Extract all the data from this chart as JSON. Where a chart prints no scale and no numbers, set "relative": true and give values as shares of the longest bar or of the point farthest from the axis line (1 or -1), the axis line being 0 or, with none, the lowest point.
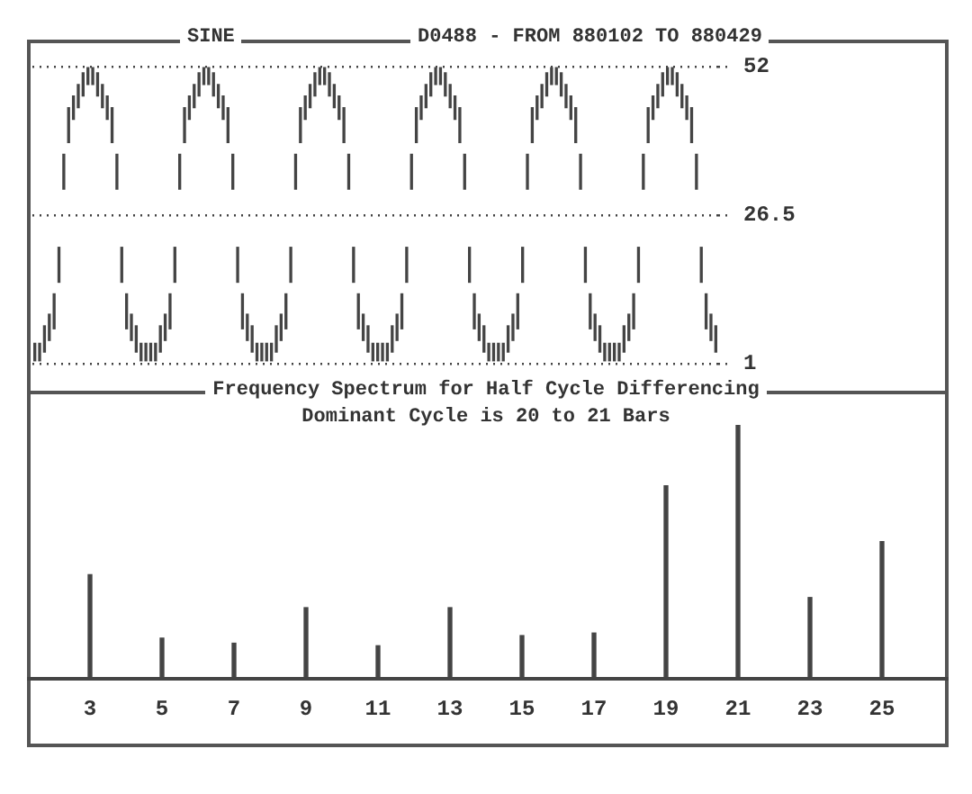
{
  "chart_data": [
    {
      "type": "bar",
      "title": "SINE",
      "subtitle": "D0488 - FROM 880102 TO 880429",
      "categories": [
        null,
        null,
        null,
        null,
        null,
        null,
        null,
        null,
        null,
        null,
        null,
        null,
        null,
        null,
        null,
        null,
        null,
        null,
        null,
        null,
        null,
        null,
        null,
        null,
        null,
        null,
        null,
        null,
        null,
        null,
        null,
        null,
        null,
        null,
        null,
        null,
        null,
        null,
        null,
        null,
        null,
        null,
        null,
        null,
        null,
        null,
        null,
        null,
        null,
        null,
        null,
        null,
        null,
        null,
        null,
        null,
        null,
        null,
        null,
        null,
        null,
        null,
        null,
        null,
        null,
        null,
        null,
        null,
        null,
        null,
        null,
        null,
        null,
        null,
        null,
        null,
        null,
        null,
        null,
        null,
        null,
        null,
        null,
        null,
        null,
        null,
        null,
        null,
        null,
        null,
        null,
        null,
        null,
        null,
        null,
        null,
        null,
        null,
        null,
        null,
        null,
        null,
        null,
        null,
        null,
        null,
        null,
        null,
        null,
        null,
        null,
        null,
        null,
        null,
        null,
        null,
        null,
        null,
        null,
        null,
        null,
        null,
        null,
        null,
        null,
        null,
        null,
        null,
        null,
        null,
        null,
        null,
        null,
        null,
        null,
        null,
        null,
        null,
        null,
        null,
        null,
        null
      ],
      "base": [
        1.5,
        1.5,
        3,
        5,
        7,
        15,
        31,
        39,
        43,
        45,
        47,
        49,
        49,
        47,
        45,
        43,
        39,
        31,
        15,
        7,
        5,
        3,
        1.5,
        1.5,
        1.5,
        1.5,
        3,
        5,
        7,
        15,
        31,
        39,
        43,
        45,
        47,
        49,
        49,
        47,
        45,
        43,
        39,
        31,
        15,
        7,
        5,
        3,
        1.5,
        1.5,
        1.5,
        1.5,
        3,
        5,
        7,
        15,
        31,
        39,
        43,
        45,
        47,
        49,
        49,
        47,
        45,
        43,
        39,
        31,
        15,
        7,
        5,
        3,
        1.5,
        1.5,
        1.5,
        1.5,
        3,
        5,
        7,
        15,
        31,
        39,
        43,
        45,
        47,
        49,
        49,
        47,
        45,
        43,
        39,
        31,
        15,
        7,
        5,
        3,
        1.5,
        1.5,
        1.5,
        1.5,
        3,
        5,
        7,
        15,
        31,
        39,
        43,
        45,
        47,
        49,
        49,
        47,
        45,
        43,
        39,
        31,
        15,
        7,
        5,
        3,
        1.5,
        1.5,
        1.5,
        1.5,
        3,
        5,
        7,
        15,
        31,
        39,
        43,
        45,
        47,
        49,
        49,
        47,
        45,
        43,
        39,
        31,
        15,
        7,
        5,
        3
      ],
      "values": [
        3,
        3,
        4.5,
        4.5,
        6,
        6,
        6,
        6,
        4,
        4,
        4,
        3,
        3,
        4,
        4,
        4,
        6,
        6,
        6,
        6,
        4.5,
        4.5,
        3,
        3,
        3,
        3,
        4.5,
        4.5,
        6,
        6,
        6,
        6,
        4,
        4,
        4,
        3,
        3,
        4,
        4,
        4,
        6,
        6,
        6,
        6,
        4.5,
        4.5,
        3,
        3,
        3,
        3,
        4.5,
        4.5,
        6,
        6,
        6,
        6,
        4,
        4,
        4,
        3,
        3,
        4,
        4,
        4,
        6,
        6,
        6,
        6,
        4.5,
        4.5,
        3,
        3,
        3,
        3,
        4.5,
        4.5,
        6,
        6,
        6,
        6,
        4,
        4,
        4,
        3,
        3,
        4,
        4,
        4,
        6,
        6,
        6,
        6,
        4.5,
        4.5,
        3,
        3,
        3,
        3,
        4.5,
        4.5,
        6,
        6,
        6,
        6,
        4,
        4,
        4,
        3,
        3,
        4,
        4,
        4,
        6,
        6,
        6,
        6,
        4.5,
        4.5,
        3,
        3,
        3,
        3,
        4.5,
        4.5,
        6,
        6,
        6,
        6,
        4,
        4,
        4,
        3,
        3,
        4,
        4,
        4,
        6,
        6,
        6,
        6,
        4.5,
        4.5
      ],
      "color": "#444444",
      "ylim": [
        1,
        52
      ],
      "yticks": [
        1,
        26.5,
        52
      ],
      "grid": "y",
      "tick_labels": "y"
    },
    {
      "type": "bar",
      "title": "Frequency Spectrum for Half Cycle Differencing",
      "subtitle": "Dominant Cycle is 20 to 21 Bars",
      "categories": [
        "3",
        "5",
        "7",
        "9",
        "11",
        "13",
        "15",
        "17",
        "19",
        "21",
        "23",
        "25"
      ],
      "values": [
        0.41,
        0.16,
        0.14,
        0.28,
        0.13,
        0.28,
        0.17,
        0.18,
        0.76,
        1,
        0.32,
        0.54
      ],
      "color": "#444444",
      "relative": true
    }
  ]
}
